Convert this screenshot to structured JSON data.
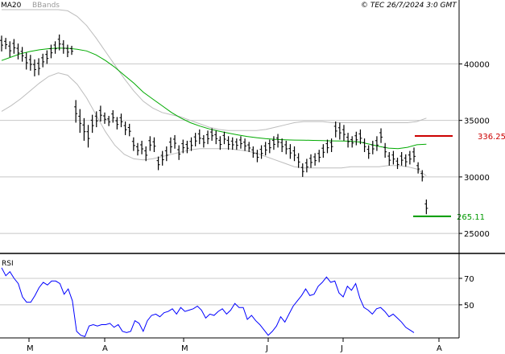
{
  "header": {
    "indicator_ma": "MA20",
    "indicator_bands": "BBands",
    "copyright": "© TEC 26/7/2024 3:0 GMT"
  },
  "colors": {
    "background": "#ffffff",
    "grid": "#c8c8c8",
    "price_bar": "#000000",
    "ma_line": "#00aa00",
    "bbands": "#bdbdbd",
    "rsi_line": "#0000ff",
    "resistance": "#cc0000",
    "support": "#009900",
    "border": "#000000",
    "bands_label": "#999999"
  },
  "chart_data": [
    {
      "type": "ohlc",
      "panel": "price",
      "x_tick_labels": [
        "M",
        "A",
        "M",
        "J",
        "J",
        "A"
      ],
      "y_tick_labels": [
        "25000",
        "30000",
        "35000",
        "40000"
      ],
      "ylim": [
        23300,
        44800
      ],
      "grid": true,
      "levels": [
        {
          "name": "resistance",
          "value": 33625,
          "label": "336.25"
        },
        {
          "name": "support",
          "value": 26511,
          "label": "265.11"
        }
      ],
      "bars": [
        {
          "high": 42500,
          "low": 41100
        },
        {
          "high": 42300,
          "low": 41300
        },
        {
          "high": 42000,
          "low": 40600
        },
        {
          "high": 42200,
          "low": 40900
        },
        {
          "high": 41800,
          "low": 40400
        },
        {
          "high": 41500,
          "low": 40200
        },
        {
          "high": 41000,
          "low": 39500
        },
        {
          "high": 40800,
          "low": 39400
        },
        {
          "high": 40400,
          "low": 38900
        },
        {
          "high": 40500,
          "low": 39000
        },
        {
          "high": 40900,
          "low": 39700
        },
        {
          "high": 41200,
          "low": 40000
        },
        {
          "high": 41700,
          "low": 40500
        },
        {
          "high": 42000,
          "low": 40900
        },
        {
          "high": 42600,
          "low": 41200
        },
        {
          "high": 42100,
          "low": 40900
        },
        {
          "high": 41700,
          "low": 40600
        },
        {
          "high": 41600,
          "low": 40800
        },
        {
          "high": 36800,
          "low": 34800
        },
        {
          "high": 36000,
          "low": 33900
        },
        {
          "high": 35200,
          "low": 33200
        },
        {
          "high": 34600,
          "low": 32600
        },
        {
          "high": 35500,
          "low": 33900
        },
        {
          "high": 35800,
          "low": 34400
        },
        {
          "high": 36300,
          "low": 34900
        },
        {
          "high": 35700,
          "low": 34700
        },
        {
          "high": 35400,
          "low": 34500
        },
        {
          "high": 35900,
          "low": 34800
        },
        {
          "high": 35300,
          "low": 34200
        },
        {
          "high": 35600,
          "low": 34400
        },
        {
          "high": 34900,
          "low": 33700
        },
        {
          "high": 34700,
          "low": 33600
        },
        {
          "high": 33500,
          "low": 32300
        },
        {
          "high": 33000,
          "low": 31900
        },
        {
          "high": 33200,
          "low": 32000
        },
        {
          "high": 32700,
          "low": 31400
        },
        {
          "high": 33600,
          "low": 32300
        },
        {
          "high": 33500,
          "low": 32200
        },
        {
          "high": 31800,
          "low": 30600
        },
        {
          "high": 32300,
          "low": 31000
        },
        {
          "high": 32700,
          "low": 31400
        },
        {
          "high": 33500,
          "low": 32100
        },
        {
          "high": 33700,
          "low": 32500
        },
        {
          "high": 32800,
          "low": 31500
        },
        {
          "high": 33300,
          "low": 32100
        },
        {
          "high": 33200,
          "low": 32100
        },
        {
          "high": 33500,
          "low": 32300
        },
        {
          "high": 33900,
          "low": 32700
        },
        {
          "high": 34200,
          "low": 32900
        },
        {
          "high": 33700,
          "low": 32600
        },
        {
          "high": 34100,
          "low": 32900
        },
        {
          "high": 34300,
          "low": 33200
        },
        {
          "high": 34100,
          "low": 32900
        },
        {
          "high": 33600,
          "low": 32400
        },
        {
          "high": 34000,
          "low": 32900
        },
        {
          "high": 33600,
          "low": 32400
        },
        {
          "high": 33500,
          "low": 32400
        },
        {
          "high": 33400,
          "low": 32400
        },
        {
          "high": 33600,
          "low": 32500
        },
        {
          "high": 33400,
          "low": 32300
        },
        {
          "high": 33100,
          "low": 32200
        },
        {
          "high": 32700,
          "low": 31700
        },
        {
          "high": 32400,
          "low": 31300
        },
        {
          "high": 32800,
          "low": 31600
        },
        {
          "high": 33100,
          "low": 31900
        },
        {
          "high": 33300,
          "low": 32100
        },
        {
          "high": 33600,
          "low": 32400
        },
        {
          "high": 33800,
          "low": 32600
        },
        {
          "high": 33400,
          "low": 32200
        },
        {
          "high": 33200,
          "low": 32000
        },
        {
          "high": 32900,
          "low": 31600
        },
        {
          "high": 32700,
          "low": 31400
        },
        {
          "high": 32100,
          "low": 30800
        },
        {
          "high": 31200,
          "low": 30000
        },
        {
          "high": 31600,
          "low": 30400
        },
        {
          "high": 32000,
          "low": 30800
        },
        {
          "high": 32100,
          "low": 31000
        },
        {
          "high": 32400,
          "low": 31300
        },
        {
          "high": 32900,
          "low": 31700
        },
        {
          "high": 33300,
          "low": 32100
        },
        {
          "high": 33400,
          "low": 32200
        },
        {
          "high": 34900,
          "low": 33500
        },
        {
          "high": 34800,
          "low": 33300
        },
        {
          "high": 34600,
          "low": 33200
        },
        {
          "high": 33900,
          "low": 32600
        },
        {
          "high": 33600,
          "low": 32600
        },
        {
          "high": 34000,
          "low": 32800
        },
        {
          "high": 34200,
          "low": 32900
        },
        {
          "high": 33400,
          "low": 32200
        },
        {
          "high": 32800,
          "low": 31600
        },
        {
          "high": 33200,
          "low": 32000
        },
        {
          "high": 33600,
          "low": 32300
        },
        {
          "high": 34300,
          "low": 33000
        },
        {
          "high": 33000,
          "low": 31700
        },
        {
          "high": 32200,
          "low": 31000
        },
        {
          "high": 32300,
          "low": 31100
        },
        {
          "high": 31700,
          "low": 30700
        },
        {
          "high": 32200,
          "low": 31000
        },
        {
          "high": 32000,
          "low": 30900
        },
        {
          "high": 32300,
          "low": 31100
        },
        {
          "high": 32600,
          "low": 31300
        },
        {
          "high": 31300,
          "low": 30300
        },
        {
          "high": 30600,
          "low": 29600
        },
        {
          "high": 28000,
          "low": 26700
        }
      ],
      "ma20": [
        40300,
        40600,
        40900,
        41100,
        41250,
        41350,
        41400,
        41380,
        41300,
        41150,
        40800,
        40300,
        39700,
        39000,
        38300,
        37500,
        36900,
        36300,
        35700,
        35200,
        34800,
        34500,
        34250,
        34050,
        33880,
        33720,
        33580,
        33470,
        33380,
        33320,
        33280,
        33260,
        33250,
        33230,
        33210,
        33190,
        33180,
        33160,
        33080,
        32900,
        32700,
        32550,
        32500,
        32620,
        32850,
        32900
      ],
      "bb_upper": [
        44800,
        44800,
        44800,
        44800,
        44800,
        44800,
        44800,
        44700,
        44200,
        43400,
        42300,
        41100,
        39900,
        38700,
        37600,
        36700,
        36100,
        35700,
        35500,
        35300,
        35000,
        34700,
        34400,
        34200,
        34100,
        34100,
        34100,
        34100,
        34200,
        34400,
        34600,
        34800,
        34900,
        34900,
        34900,
        34800,
        34800,
        34800,
        34800,
        34800,
        34800,
        34800,
        34800,
        34800,
        34900,
        35200
      ],
      "bb_lower": [
        35800,
        36300,
        36900,
        37600,
        38300,
        38900,
        39200,
        39000,
        38200,
        37000,
        35500,
        34000,
        32800,
        32000,
        31600,
        31500,
        31600,
        31800,
        32000,
        32200,
        32400,
        32500,
        32500,
        32500,
        32500,
        32400,
        32300,
        32100,
        31800,
        31500,
        31200,
        30900,
        30800,
        30800,
        30800,
        30800,
        30800,
        30900,
        30900,
        30900,
        30900,
        31000,
        31000,
        30900,
        30700,
        30100
      ]
    },
    {
      "type": "line",
      "panel": "rsi",
      "title": "RSI",
      "y_tick_labels": [
        "50",
        "70"
      ],
      "ylim": [
        25,
        87
      ],
      "grid": true,
      "values": [
        78,
        72,
        75,
        70,
        66,
        56,
        52,
        52,
        57,
        63,
        67,
        65,
        68,
        68,
        66,
        58,
        62,
        53,
        30,
        27,
        26,
        34,
        35,
        34,
        35,
        35,
        36,
        33,
        35,
        30,
        29,
        30,
        38,
        36,
        30,
        38,
        42,
        43,
        41,
        44,
        45,
        47,
        43,
        48,
        45,
        46,
        47,
        49,
        46,
        40,
        43,
        42,
        45,
        47,
        43,
        46,
        51,
        48,
        48,
        39,
        42,
        38,
        35,
        31,
        27,
        30,
        34,
        41,
        37,
        43,
        49,
        53,
        57,
        62,
        57,
        58,
        64,
        67,
        71,
        67,
        68,
        59,
        56,
        64,
        61,
        66,
        55,
        48,
        46,
        43,
        47,
        48,
        45,
        41,
        43,
        40,
        37,
        33,
        31,
        29
      ]
    }
  ]
}
